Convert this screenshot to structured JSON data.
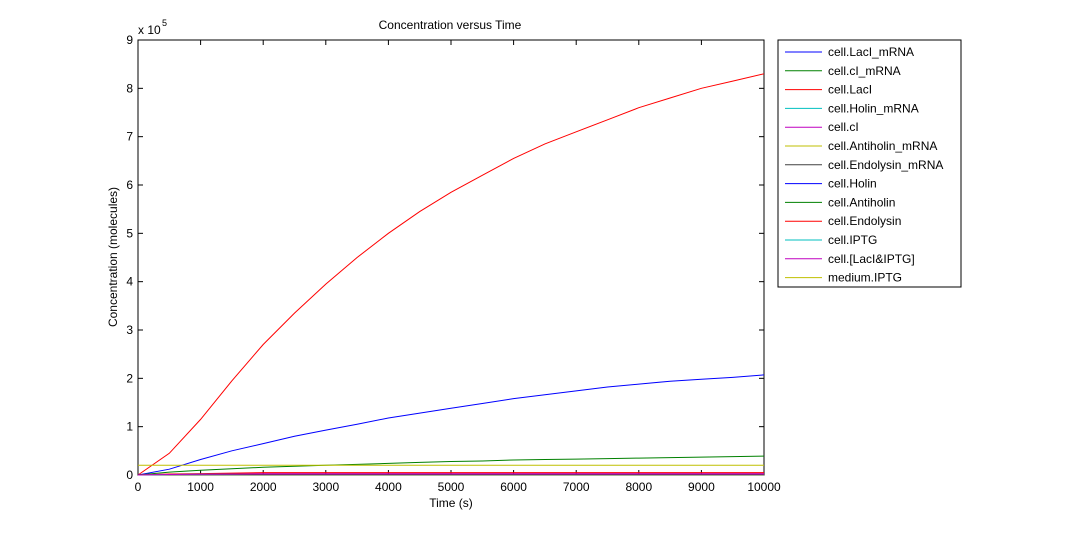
{
  "chart_data": {
    "type": "line",
    "title": "Concentration versus Time",
    "xlabel": "Time (s)",
    "ylabel": "Concentration (molecules)",
    "xlim": [
      0,
      10000
    ],
    "ylim": [
      0,
      9
    ],
    "y_multiplier_base": "x 10",
    "y_multiplier_exp": "5",
    "xticks": [
      0,
      1000,
      2000,
      3000,
      4000,
      5000,
      6000,
      7000,
      8000,
      9000,
      10000
    ],
    "yticks": [
      0,
      1,
      2,
      3,
      4,
      5,
      6,
      7,
      8,
      9
    ],
    "grid": false,
    "legend_position": "outside-top-right",
    "x": [
      0,
      500,
      1000,
      1500,
      2000,
      2500,
      3000,
      3500,
      4000,
      4500,
      5000,
      5500,
      6000,
      6500,
      7000,
      7500,
      8000,
      8500,
      9000,
      9500,
      10000
    ],
    "series": [
      {
        "name": "cell.LacI_mRNA",
        "color": "#0000ff",
        "values": [
          0,
          0.005,
          0.008,
          0.01,
          0.011,
          0.012,
          0.012,
          0.012,
          0.012,
          0.012,
          0.012,
          0.012,
          0.012,
          0.012,
          0.012,
          0.012,
          0.012,
          0.012,
          0.012,
          0.012,
          0.012
        ]
      },
      {
        "name": "cell.cI_mRNA",
        "color": "#008000",
        "values": [
          0,
          0.003,
          0.005,
          0.006,
          0.007,
          0.007,
          0.007,
          0.007,
          0.007,
          0.007,
          0.007,
          0.007,
          0.007,
          0.007,
          0.007,
          0.007,
          0.007,
          0.007,
          0.007,
          0.007,
          0.007
        ]
      },
      {
        "name": "cell.LacI",
        "color": "#ff0000",
        "values": [
          0,
          0.45,
          1.15,
          1.95,
          2.7,
          3.35,
          3.95,
          4.5,
          5.0,
          5.45,
          5.85,
          6.2,
          6.55,
          6.85,
          7.1,
          7.35,
          7.6,
          7.8,
          8.0,
          8.15,
          8.3
        ]
      },
      {
        "name": "cell.Holin_mRNA",
        "color": "#00bfbf",
        "values": [
          0,
          0.004,
          0.006,
          0.007,
          0.008,
          0.008,
          0.008,
          0.008,
          0.008,
          0.008,
          0.008,
          0.008,
          0.008,
          0.008,
          0.008,
          0.008,
          0.008,
          0.008,
          0.008,
          0.008,
          0.008
        ]
      },
      {
        "name": "cell.cI",
        "color": "#bf00bf",
        "values": [
          0,
          0.01,
          0.02,
          0.025,
          0.03,
          0.03,
          0.03,
          0.03,
          0.03,
          0.03,
          0.03,
          0.03,
          0.03,
          0.03,
          0.03,
          0.03,
          0.03,
          0.03,
          0.03,
          0.03,
          0.03
        ]
      },
      {
        "name": "cell.Antiholin_mRNA",
        "color": "#bfbf00",
        "values": [
          0,
          0.002,
          0.003,
          0.004,
          0.004,
          0.004,
          0.004,
          0.004,
          0.004,
          0.004,
          0.004,
          0.004,
          0.004,
          0.004,
          0.004,
          0.004,
          0.004,
          0.004,
          0.004,
          0.004,
          0.004
        ]
      },
      {
        "name": "cell.Endolysin_mRNA",
        "color": "#404040",
        "values": [
          0,
          0.002,
          0.003,
          0.004,
          0.004,
          0.004,
          0.004,
          0.004,
          0.004,
          0.004,
          0.004,
          0.004,
          0.004,
          0.004,
          0.004,
          0.004,
          0.004,
          0.004,
          0.004,
          0.004,
          0.004
        ]
      },
      {
        "name": "cell.Holin",
        "color": "#0000ff",
        "values": [
          0,
          0.12,
          0.32,
          0.5,
          0.65,
          0.8,
          0.93,
          1.05,
          1.18,
          1.28,
          1.38,
          1.48,
          1.58,
          1.66,
          1.74,
          1.82,
          1.88,
          1.94,
          1.98,
          2.02,
          2.07
        ]
      },
      {
        "name": "cell.Antiholin",
        "color": "#008000",
        "values": [
          0,
          0.06,
          0.1,
          0.13,
          0.16,
          0.18,
          0.2,
          0.22,
          0.24,
          0.26,
          0.28,
          0.29,
          0.31,
          0.32,
          0.33,
          0.34,
          0.35,
          0.36,
          0.37,
          0.38,
          0.39
        ]
      },
      {
        "name": "cell.Endolysin",
        "color": "#ff0000",
        "values": [
          0,
          0.02,
          0.03,
          0.04,
          0.05,
          0.05,
          0.05,
          0.05,
          0.05,
          0.05,
          0.05,
          0.05,
          0.05,
          0.05,
          0.05,
          0.05,
          0.05,
          0.05,
          0.05,
          0.05,
          0.05
        ]
      },
      {
        "name": "cell.IPTG",
        "color": "#00bfbf",
        "values": [
          0,
          0.01,
          0.015,
          0.018,
          0.02,
          0.02,
          0.02,
          0.02,
          0.02,
          0.02,
          0.02,
          0.02,
          0.02,
          0.02,
          0.02,
          0.02,
          0.02,
          0.02,
          0.02,
          0.02,
          0.02
        ]
      },
      {
        "name": "cell.[LacI&IPTG]",
        "color": "#bf00bf",
        "values": [
          0,
          0.01,
          0.015,
          0.018,
          0.02,
          0.02,
          0.02,
          0.02,
          0.02,
          0.02,
          0.02,
          0.02,
          0.02,
          0.02,
          0.02,
          0.02,
          0.02,
          0.02,
          0.02,
          0.02,
          0.02
        ]
      },
      {
        "name": "medium.IPTG",
        "color": "#bfbf00",
        "values": [
          0.2,
          0.2,
          0.2,
          0.2,
          0.2,
          0.2,
          0.2,
          0.2,
          0.2,
          0.2,
          0.2,
          0.2,
          0.2,
          0.2,
          0.2,
          0.2,
          0.2,
          0.2,
          0.2,
          0.2,
          0.2
        ]
      }
    ]
  }
}
